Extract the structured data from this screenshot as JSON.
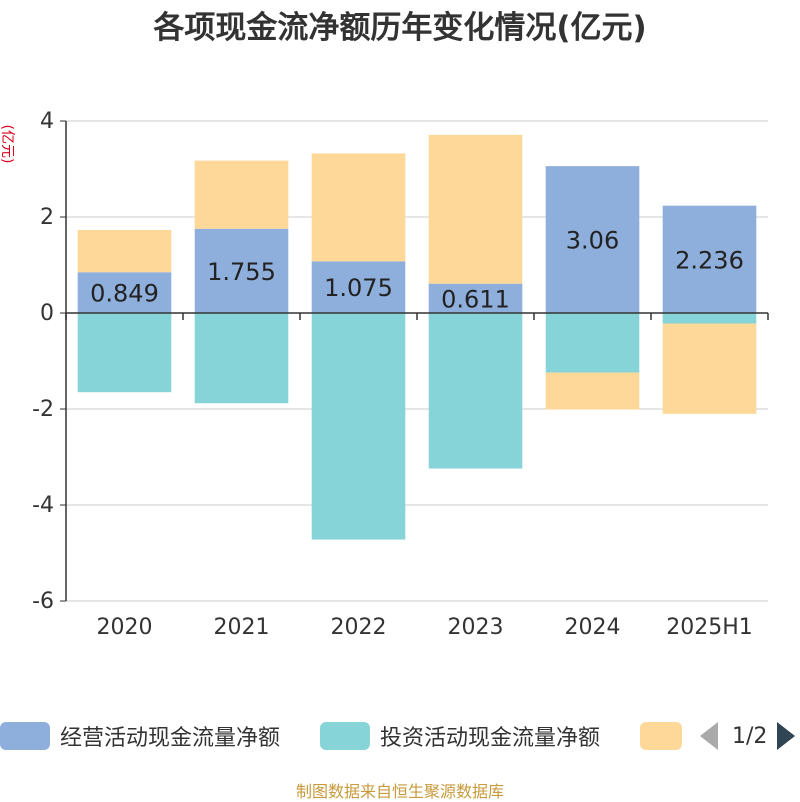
{
  "chart_data": {
    "type": "bar",
    "stacked": true,
    "title": "各项现金流净额历年变化情况(亿元)",
    "ylabel": "(亿元)",
    "categories": [
      "2020",
      "2021",
      "2022",
      "2023",
      "2024",
      "2025H1"
    ],
    "ylim": [
      -6,
      4
    ],
    "yticks": [
      4,
      2,
      0,
      -2,
      -4,
      -6
    ],
    "grid": true,
    "series": [
      {
        "name": "经营活动现金流量净额",
        "color": "#8eaedb",
        "values": [
          0.849,
          1.755,
          1.075,
          0.611,
          3.06,
          2.236
        ],
        "labels": [
          "0.849",
          "1.755",
          "1.075",
          "0.611",
          "3.06",
          "2.236"
        ]
      },
      {
        "name": "投资活动现金流量净额",
        "color": "#86d4d8",
        "values": [
          -1.65,
          -1.88,
          -4.72,
          -3.24,
          -1.24,
          -0.22
        ]
      },
      {
        "name": "",
        "color": "#fed898",
        "values": [
          0.88,
          1.42,
          2.25,
          3.1,
          -0.77,
          -1.88
        ]
      }
    ],
    "legend_position": "bottom"
  },
  "legend": {
    "page": "1/2"
  },
  "footer": "制图数据来自恒生聚源数据库"
}
